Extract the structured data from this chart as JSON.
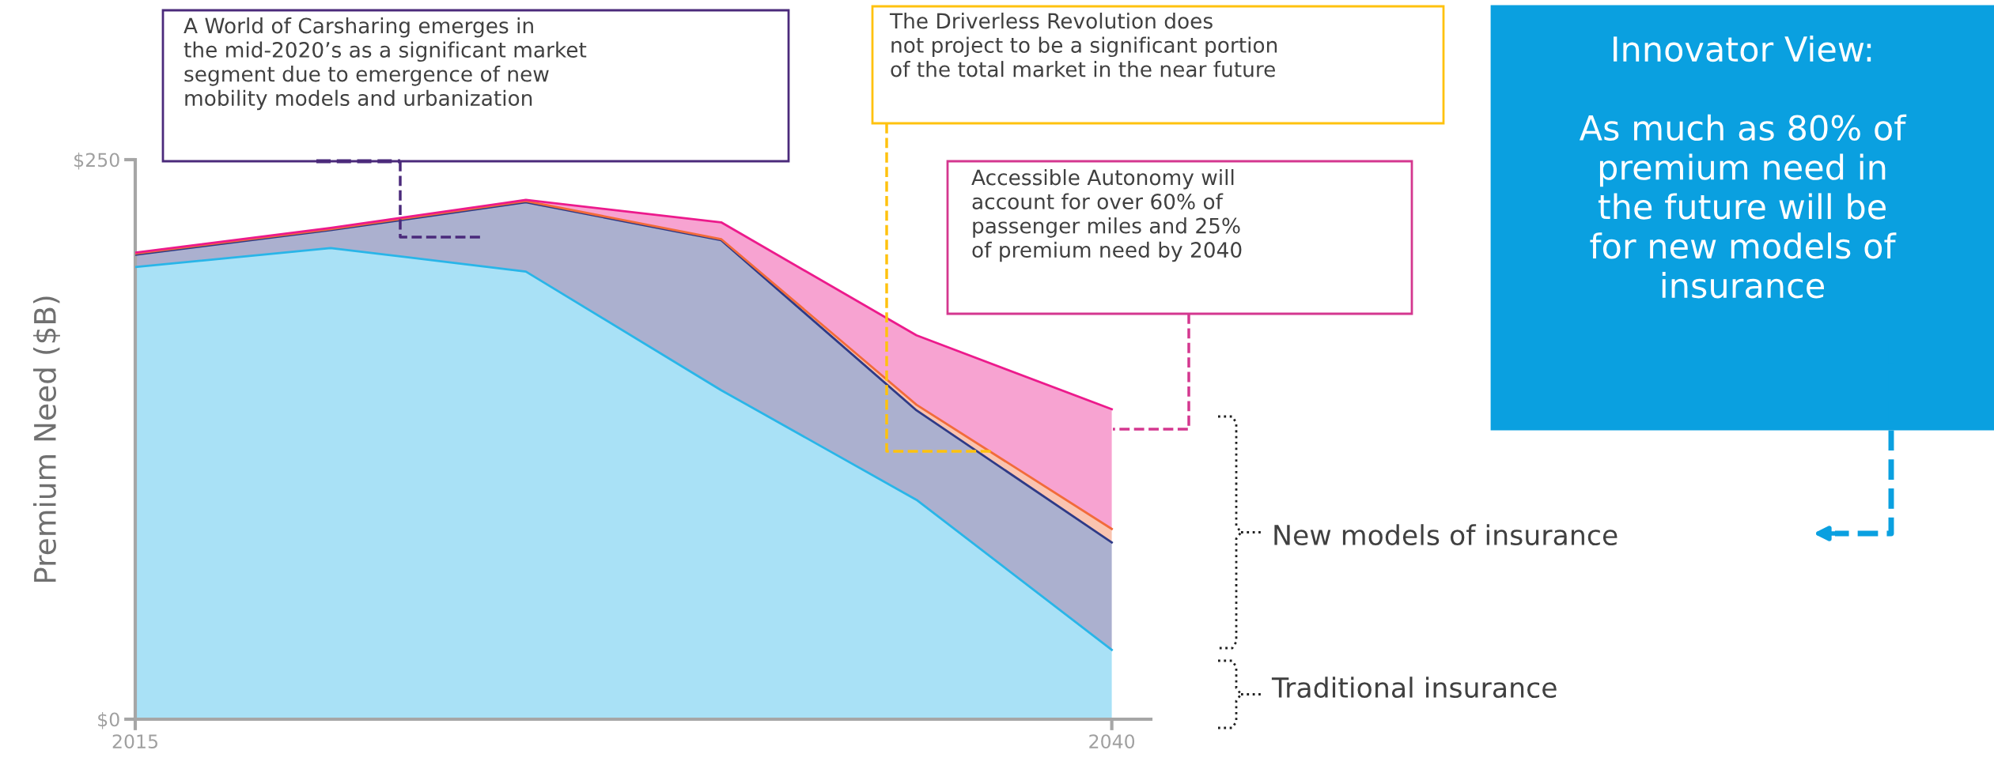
{
  "chart_data": {
    "type": "area",
    "stacked": true,
    "ylabel": "Premium Need ($B)",
    "x": [
      2015,
      2020,
      2025,
      2030,
      2035,
      2040
    ],
    "xlim": [
      2015,
      2041
    ],
    "xticks": [
      2015,
      2040
    ],
    "ylim": [
      0,
      250
    ],
    "yticks": [
      {
        "value": 0,
        "label": "$0"
      },
      {
        "value": 250,
        "label": "$250"
      }
    ],
    "grid": false,
    "legend": false,
    "line_style": "solid",
    "series": [
      {
        "color": "#29b5e8",
        "values": [
          202,
          210.5,
          200,
          147,
          98,
          31
        ]
      },
      {
        "color": "#2e3a87",
        "values": [
          5.5,
          8,
          31,
          67,
          40,
          48
        ]
      },
      {
        "color": "#f26b3a",
        "values": [
          0.5,
          0.5,
          0.5,
          0.5,
          2.5,
          6
        ]
      },
      {
        "color": "#ec1a8c",
        "values": [
          0.5,
          0.5,
          0.5,
          7.5,
          31,
          53.5
        ]
      }
    ],
    "annotations": [
      "A World of Carsharing emerges in\nthe mid-2020’s as a significant market\nsegment due to emergence of new\nmobility models and urbanization",
      "The Driverless Revolution does\nnot project to be a significant portion\nof the total market in the near future",
      "Accessible Autonomy will\naccount for over 60% of\npassenger miles and 25%\nof premium need by 2040",
      "Innovator View:\n\nAs much as 80% of\npremium need in\nthe future will be\nfor new models of\ninsurance",
      "New models of insurance",
      "Traditional insurance"
    ]
  }
}
